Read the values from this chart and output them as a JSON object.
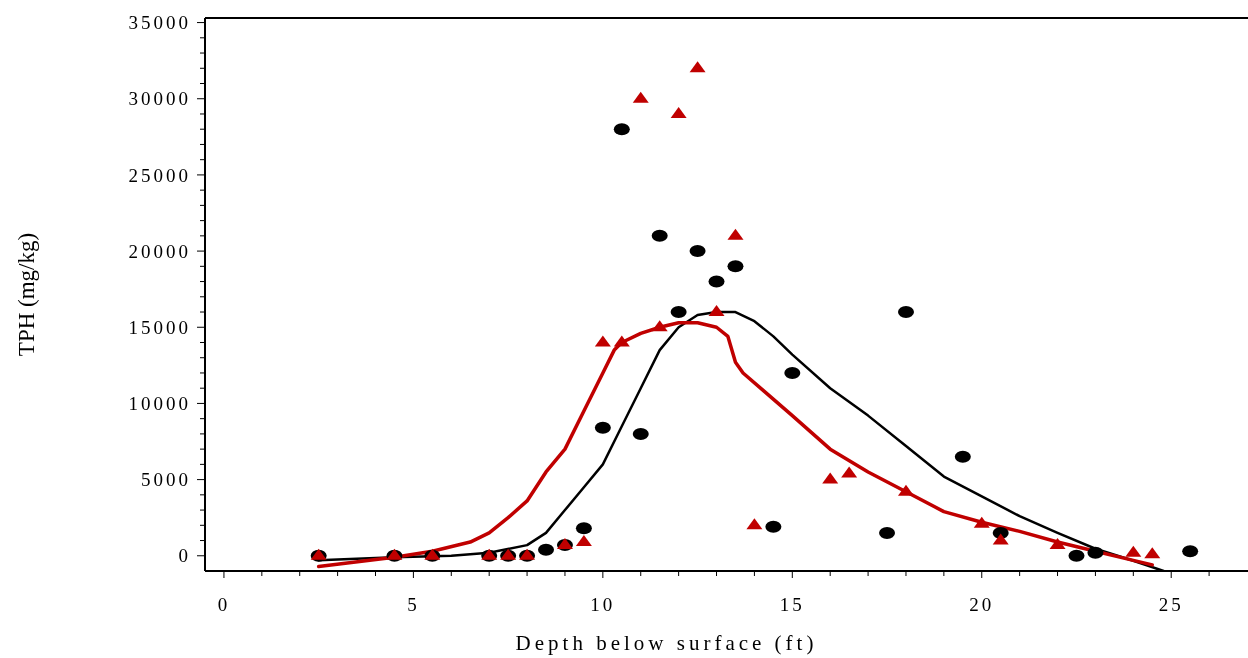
{
  "chart_data": {
    "type": "scatter",
    "xlabel": "Depth below surface (ft)",
    "ylabel": "TPH (mg/kg)",
    "xlim": [
      -0.5,
      27
    ],
    "ylim": [
      -1000,
      35300
    ],
    "xticks": [
      0,
      {
        "value": 1,
        "label": null
      },
      {
        "value": 2,
        "label": null
      },
      {
        "value": 3,
        "label": null
      },
      {
        "value": 4,
        "label": null
      },
      5,
      {
        "value": 6,
        "label": null
      },
      {
        "value": 7,
        "label": null
      },
      {
        "value": 8,
        "label": null
      },
      {
        "value": 9,
        "label": null
      },
      10,
      {
        "value": 11,
        "label": null
      },
      {
        "value": 12,
        "label": null
      },
      {
        "value": 13,
        "label": null
      },
      {
        "value": 14,
        "label": null
      },
      15,
      {
        "value": 16,
        "label": null
      },
      {
        "value": 17,
        "label": null
      },
      {
        "value": 18,
        "label": null
      },
      {
        "value": 19,
        "label": null
      },
      20,
      {
        "value": 21,
        "label": null
      },
      {
        "value": 22,
        "label": null
      },
      {
        "value": 23,
        "label": null
      },
      {
        "value": 24,
        "label": null
      },
      25,
      {
        "value": 26,
        "label": null
      }
    ],
    "yticks": [
      0,
      {
        "value": 1000,
        "label": null
      },
      {
        "value": 2000,
        "label": null
      },
      {
        "value": 3000,
        "label": null
      },
      {
        "value": 4000,
        "label": null
      },
      5000,
      {
        "value": 6000,
        "label": null
      },
      {
        "value": 7000,
        "label": null
      },
      {
        "value": 8000,
        "label": null
      },
      {
        "value": 9000,
        "label": null
      },
      10000,
      {
        "value": 11000,
        "label": null
      },
      {
        "value": 12000,
        "label": null
      },
      {
        "value": 13000,
        "label": null
      },
      {
        "value": 14000,
        "label": null
      },
      15000,
      {
        "value": 16000,
        "label": null
      },
      {
        "value": 17000,
        "label": null
      },
      {
        "value": 18000,
        "label": null
      },
      {
        "value": 19000,
        "label": null
      },
      20000,
      {
        "value": 21000,
        "label": null
      },
      {
        "value": 22000,
        "label": null
      },
      {
        "value": 23000,
        "label": null
      },
      {
        "value": 24000,
        "label": null
      },
      25000,
      {
        "value": 26000,
        "label": null
      },
      {
        "value": 27000,
        "label": null
      },
      {
        "value": 28000,
        "label": null
      },
      {
        "value": 29000,
        "label": null
      },
      30000,
      {
        "value": 31000,
        "label": null
      },
      {
        "value": 32000,
        "label": null
      },
      {
        "value": 33000,
        "label": null
      },
      {
        "value": 34000,
        "label": null
      },
      35000
    ],
    "series": [
      {
        "type": "line",
        "color": "#000000",
        "line_style": "solid",
        "x": [
          2.5,
          4.5,
          6,
          7,
          8,
          8.5,
          9,
          9.5,
          10,
          10.5,
          11,
          11.5,
          12,
          12.5,
          13,
          13.5,
          14,
          14.5,
          15,
          16,
          17,
          18,
          19,
          20,
          21,
          22,
          23,
          24,
          24.8
        ],
        "values": [
          -300,
          -100,
          0,
          200,
          700,
          1500,
          3000,
          4500,
          6000,
          8500,
          11000,
          13500,
          15000,
          15800,
          16000,
          16000,
          15400,
          14400,
          13200,
          11000,
          9200,
          7200,
          5200,
          3900,
          2600,
          1500,
          460,
          -330,
          -1000
        ]
      },
      {
        "type": "line",
        "color": "#c00000",
        "line_style": "solid",
        "x": [
          2.5,
          4.5,
          5.5,
          6.5,
          7,
          7.5,
          8,
          8.5,
          9,
          9.5,
          10,
          10.3,
          10.5,
          11,
          11.5,
          12,
          12.5,
          13,
          13.3,
          13.5,
          13.7,
          15,
          16,
          17,
          18,
          19,
          20,
          21,
          22,
          23,
          24,
          24.5
        ],
        "values": [
          -700,
          -100,
          300,
          900,
          1500,
          2500,
          3600,
          5500,
          7000,
          9500,
          12000,
          13500,
          14000,
          14600,
          15000,
          15300,
          15300,
          15000,
          14400,
          12700,
          12000,
          9200,
          7000,
          5500,
          4200,
          2900,
          2200,
          1600,
          900,
          300,
          -300,
          -600
        ]
      },
      {
        "color": "#000000",
        "marker": "circle",
        "x": [
          2.5,
          4.5,
          5.5,
          7,
          7.5,
          8,
          8.5,
          9,
          9.5,
          10,
          10.5,
          11,
          11.5,
          12,
          12.5,
          13,
          13.5,
          14.5,
          15,
          17.5,
          18,
          19.5,
          20.5,
          22.5,
          23,
          25.5
        ],
        "values": [
          0,
          0,
          0,
          0,
          0,
          0,
          400,
          700,
          1800,
          8400,
          28000,
          8000,
          21000,
          16000,
          20000,
          18000,
          19000,
          1900,
          12000,
          1500,
          16000,
          6500,
          1500,
          0,
          200,
          300
        ]
      },
      {
        "color": "#c00000",
        "marker": "triangle",
        "x": [
          2.5,
          4.5,
          5.5,
          7,
          7.5,
          8,
          9,
          9.5,
          10,
          10.5,
          11,
          11.5,
          12,
          12.5,
          13,
          13.5,
          14,
          16,
          16.5,
          18,
          20,
          20.5,
          22,
          24,
          24.5
        ],
        "values": [
          0,
          0,
          0,
          0,
          0,
          0,
          700,
          900,
          14000,
          14000,
          30000,
          15000,
          29000,
          32000,
          16000,
          21000,
          2000,
          5000,
          5400,
          4200,
          2100,
          1000,
          700,
          200,
          100
        ]
      }
    ]
  }
}
